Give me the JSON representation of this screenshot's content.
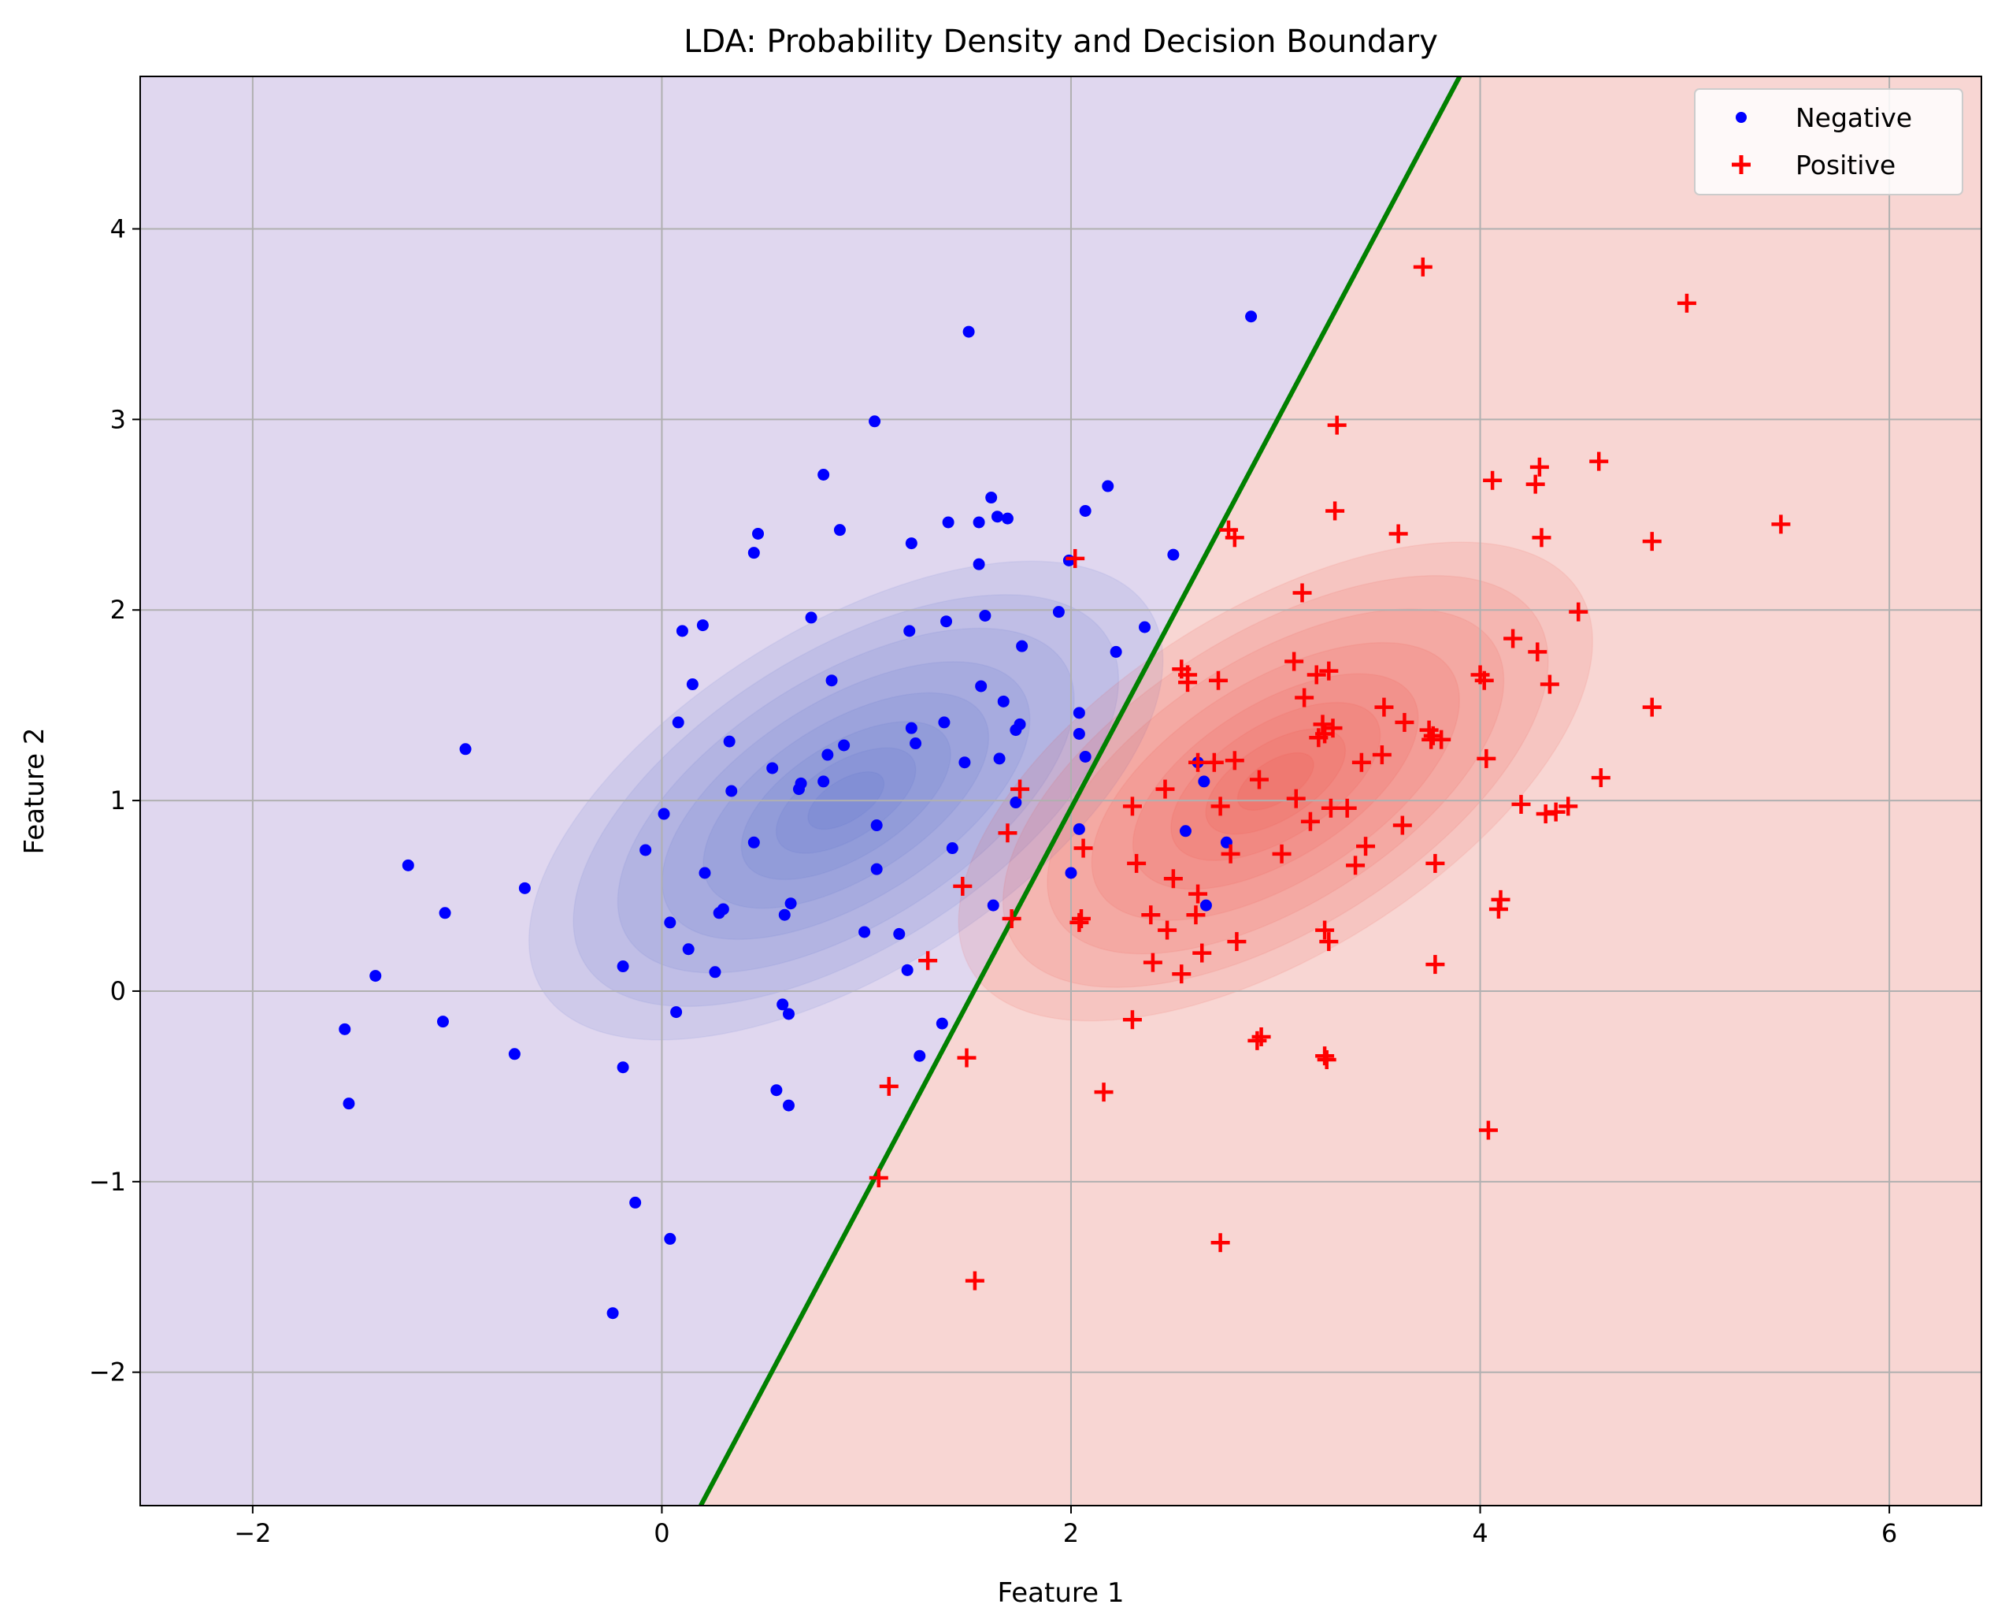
{
  "chart_data": {
    "type": "scatter",
    "title": "LDA: Probability Density and Decision Boundary",
    "xlabel": "Feature 1",
    "ylabel": "Feature 2",
    "xlim": [
      -2.55,
      6.45
    ],
    "ylim": [
      -2.7,
      4.8
    ],
    "xticks": [
      -2,
      0,
      2,
      4,
      6
    ],
    "yticks": [
      -2,
      -1,
      0,
      1,
      2,
      3,
      4
    ],
    "tick_labels": {
      "x": [
        "−2",
        "0",
        "2",
        "4",
        "6"
      ],
      "y": [
        "−2",
        "−1",
        "0",
        "1",
        "2",
        "3",
        "4"
      ]
    },
    "grid": true,
    "legend_position": "top-right",
    "region_colors": {
      "negative": "#e0d7ef",
      "positive": "#f8d6d3"
    },
    "decision_boundary": {
      "color": "#008000",
      "points": [
        [
          0.19,
          -2.7
        ],
        [
          3.9,
          4.8
        ]
      ]
    },
    "density": [
      {
        "class": "negative",
        "center": [
          0.9,
          1.0
        ],
        "color": "#4c63c7",
        "sx": 1.75,
        "sy": 1.4,
        "rot_deg": 32
      },
      {
        "class": "positive",
        "center": [
          3.0,
          1.1
        ],
        "color": "#ec3d33",
        "sx": 1.75,
        "sy": 1.4,
        "rot_deg": 32
      }
    ],
    "series": [
      {
        "name": "Negative",
        "marker": "circle",
        "color": "#0000ff",
        "points": [
          [
            -1.55,
            -0.2
          ],
          [
            -1.53,
            -0.59
          ],
          [
            -1.4,
            0.08
          ],
          [
            -1.24,
            0.66
          ],
          [
            -1.06,
            0.41
          ],
          [
            -1.07,
            -0.16
          ],
          [
            -0.96,
            1.27
          ],
          [
            -0.72,
            -0.33
          ],
          [
            -0.67,
            0.54
          ],
          [
            -0.24,
            -1.69
          ],
          [
            -0.19,
            0.13
          ],
          [
            -0.19,
            -0.4
          ],
          [
            -0.13,
            -1.11
          ],
          [
            -0.08,
            0.74
          ],
          [
            0.01,
            0.93
          ],
          [
            0.04,
            0.36
          ],
          [
            0.04,
            -1.3
          ],
          [
            0.07,
            -0.11
          ],
          [
            0.08,
            1.41
          ],
          [
            0.1,
            1.89
          ],
          [
            0.13,
            0.22
          ],
          [
            0.15,
            1.61
          ],
          [
            0.2,
            1.92
          ],
          [
            0.21,
            0.62
          ],
          [
            0.26,
            0.1
          ],
          [
            0.28,
            0.41
          ],
          [
            0.3,
            0.43
          ],
          [
            0.33,
            1.31
          ],
          [
            0.34,
            1.05
          ],
          [
            0.45,
            0.78
          ],
          [
            0.45,
            2.3
          ],
          [
            0.47,
            2.4
          ],
          [
            0.54,
            1.17
          ],
          [
            0.56,
            -0.52
          ],
          [
            0.59,
            -0.07
          ],
          [
            0.6,
            0.4
          ],
          [
            0.62,
            -0.12
          ],
          [
            0.62,
            -0.6
          ],
          [
            0.63,
            0.46
          ],
          [
            0.67,
            1.06
          ],
          [
            0.68,
            1.09
          ],
          [
            0.73,
            1.96
          ],
          [
            0.79,
            2.71
          ],
          [
            0.79,
            1.1
          ],
          [
            0.81,
            1.24
          ],
          [
            0.83,
            1.63
          ],
          [
            0.87,
            2.42
          ],
          [
            0.89,
            1.29
          ],
          [
            0.99,
            0.31
          ],
          [
            1.04,
            2.99
          ],
          [
            1.05,
            0.87
          ],
          [
            1.05,
            0.64
          ],
          [
            1.16,
            0.3
          ],
          [
            1.2,
            0.11
          ],
          [
            1.21,
            1.89
          ],
          [
            1.22,
            1.38
          ],
          [
            1.22,
            2.35
          ],
          [
            1.24,
            1.3
          ],
          [
            1.26,
            -0.34
          ],
          [
            1.37,
            -0.17
          ],
          [
            1.38,
            1.41
          ],
          [
            1.39,
            1.94
          ],
          [
            1.4,
            2.46
          ],
          [
            1.42,
            0.75
          ],
          [
            1.48,
            1.2
          ],
          [
            1.5,
            3.46
          ],
          [
            1.55,
            2.46
          ],
          [
            1.55,
            2.24
          ],
          [
            1.56,
            1.6
          ],
          [
            1.58,
            1.97
          ],
          [
            1.61,
            2.59
          ],
          [
            1.62,
            0.45
          ],
          [
            1.64,
            2.49
          ],
          [
            1.65,
            1.22
          ],
          [
            1.67,
            1.52
          ],
          [
            1.69,
            2.48
          ],
          [
            1.73,
            0.99
          ],
          [
            1.73,
            1.37
          ],
          [
            1.75,
            1.4
          ],
          [
            1.76,
            1.81
          ],
          [
            1.94,
            1.99
          ],
          [
            1.99,
            2.26
          ],
          [
            2.0,
            0.62
          ],
          [
            2.04,
            0.85
          ],
          [
            2.04,
            1.35
          ],
          [
            2.04,
            1.46
          ],
          [
            2.07,
            1.23
          ],
          [
            2.07,
            2.52
          ],
          [
            2.18,
            2.65
          ],
          [
            2.22,
            1.78
          ],
          [
            2.36,
            1.91
          ],
          [
            2.5,
            2.29
          ],
          [
            2.56,
            0.84
          ],
          [
            2.62,
            1.2
          ],
          [
            2.65,
            1.1
          ],
          [
            2.66,
            0.45
          ],
          [
            2.76,
            0.78
          ],
          [
            2.88,
            3.54
          ]
        ]
      },
      {
        "name": "Positive",
        "marker": "plus",
        "color": "#ff0000",
        "points": [
          [
            1.06,
            -0.98
          ],
          [
            1.11,
            -0.5
          ],
          [
            1.3,
            0.16
          ],
          [
            1.47,
            0.55
          ],
          [
            1.49,
            -0.35
          ],
          [
            1.53,
            -1.52
          ],
          [
            1.69,
            0.83
          ],
          [
            1.71,
            0.38
          ],
          [
            1.75,
            1.06
          ],
          [
            2.02,
            2.27
          ],
          [
            2.04,
            0.36
          ],
          [
            2.05,
            0.38
          ],
          [
            2.06,
            0.75
          ],
          [
            2.16,
            -0.53
          ],
          [
            2.3,
            -0.15
          ],
          [
            2.3,
            0.97
          ],
          [
            2.32,
            0.67
          ],
          [
            2.39,
            0.4
          ],
          [
            2.4,
            0.15
          ],
          [
            2.46,
            1.06
          ],
          [
            2.47,
            0.32
          ],
          [
            2.5,
            0.59
          ],
          [
            2.54,
            0.09
          ],
          [
            2.54,
            1.69
          ],
          [
            2.57,
            1.62
          ],
          [
            2.57,
            1.66
          ],
          [
            2.61,
            0.4
          ],
          [
            2.62,
            1.2
          ],
          [
            2.62,
            0.51
          ],
          [
            2.64,
            0.2
          ],
          [
            2.7,
            1.2
          ],
          [
            2.72,
            1.63
          ],
          [
            2.73,
            -1.32
          ],
          [
            2.73,
            0.97
          ],
          [
            2.77,
            2.42
          ],
          [
            2.78,
            0.72
          ],
          [
            2.8,
            1.21
          ],
          [
            2.8,
            2.38
          ],
          [
            2.81,
            0.26
          ],
          [
            2.91,
            -0.26
          ],
          [
            2.92,
            1.11
          ],
          [
            2.93,
            -0.24
          ],
          [
            3.03,
            0.72
          ],
          [
            3.09,
            1.73
          ],
          [
            3.1,
            1.01
          ],
          [
            3.13,
            2.09
          ],
          [
            3.14,
            1.54
          ],
          [
            3.17,
            0.89
          ],
          [
            3.2,
            1.66
          ],
          [
            3.21,
            1.33
          ],
          [
            3.23,
            1.4
          ],
          [
            3.24,
            0.32
          ],
          [
            3.24,
            -0.34
          ],
          [
            3.24,
            1.35
          ],
          [
            3.25,
            -0.36
          ],
          [
            3.26,
            1.68
          ],
          [
            3.26,
            0.26
          ],
          [
            3.27,
            0.96
          ],
          [
            3.28,
            1.38
          ],
          [
            3.29,
            2.52
          ],
          [
            3.3,
            2.97
          ],
          [
            3.35,
            0.96
          ],
          [
            3.39,
            0.66
          ],
          [
            3.42,
            1.2
          ],
          [
            3.44,
            0.76
          ],
          [
            3.52,
            1.24
          ],
          [
            3.53,
            1.49
          ],
          [
            3.6,
            2.4
          ],
          [
            3.62,
            0.87
          ],
          [
            3.63,
            1.41
          ],
          [
            3.72,
            3.8
          ],
          [
            3.75,
            1.37
          ],
          [
            3.76,
            1.32
          ],
          [
            3.77,
            1.34
          ],
          [
            3.78,
            0.67
          ],
          [
            3.78,
            0.14
          ],
          [
            3.81,
            1.32
          ],
          [
            4.0,
            1.66
          ],
          [
            4.02,
            1.63
          ],
          [
            4.03,
            1.22
          ],
          [
            4.04,
            -0.73
          ],
          [
            4.06,
            2.68
          ],
          [
            4.09,
            0.43
          ],
          [
            4.1,
            0.48
          ],
          [
            4.16,
            1.85
          ],
          [
            4.2,
            0.98
          ],
          [
            4.27,
            2.66
          ],
          [
            4.28,
            1.78
          ],
          [
            4.29,
            2.75
          ],
          [
            4.3,
            2.38
          ],
          [
            4.32,
            0.93
          ],
          [
            4.34,
            1.61
          ],
          [
            4.37,
            0.94
          ],
          [
            4.43,
            0.97
          ],
          [
            4.48,
            1.99
          ],
          [
            4.58,
            2.78
          ],
          [
            4.59,
            1.12
          ],
          [
            4.84,
            1.49
          ],
          [
            4.84,
            2.36
          ],
          [
            5.01,
            3.61
          ],
          [
            5.47,
            2.45
          ]
        ]
      }
    ]
  }
}
